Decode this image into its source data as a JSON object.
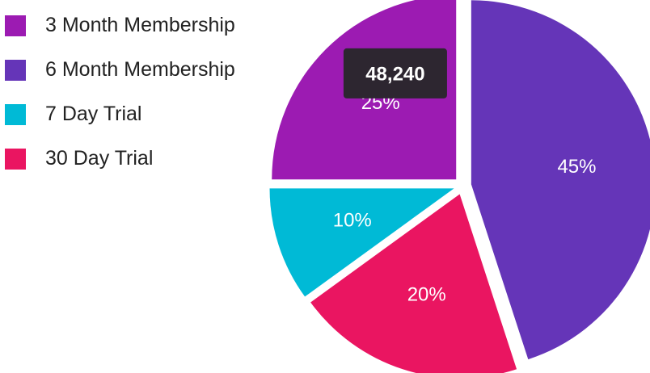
{
  "chart_data": {
    "type": "pie",
    "categories": [
      "3 Month Membership",
      "6 Month Membership",
      "7 Day Trial",
      "30 Day Trial"
    ],
    "values": [
      25,
      45,
      10,
      20
    ],
    "value_labels": [
      "25%",
      "45%",
      "10%",
      "20%"
    ],
    "colors": [
      "#9c1bb2",
      "#6535b8",
      "#00bad6",
      "#ea1561"
    ],
    "legend": "top-left",
    "tooltip": {
      "text": "48,240",
      "slice": "3 Month Membership"
    }
  }
}
